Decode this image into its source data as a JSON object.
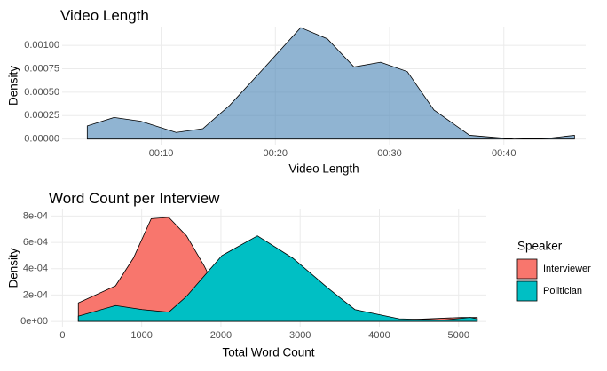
{
  "chart_data": [
    {
      "type": "density",
      "title": "Video Length",
      "x_label": "Video Length",
      "y_label": "Density",
      "xlim": [
        80,
        2830
      ],
      "ylim": [
        -6e-05,
        0.0012
      ],
      "xticks": [
        {
          "value": 600,
          "label": "00:10"
        },
        {
          "value": 1200,
          "label": "00:20"
        },
        {
          "value": 1800,
          "label": "00:30"
        },
        {
          "value": 2400,
          "label": "00:40"
        }
      ],
      "yticks": [
        {
          "value": 0,
          "label": "0.00000"
        },
        {
          "value": 0.00025,
          "label": "0.00025"
        },
        {
          "value": 0.0005,
          "label": "0.00050"
        },
        {
          "value": 0.00075,
          "label": "0.00075"
        },
        {
          "value": 0.001,
          "label": "0.00100"
        }
      ],
      "grid": true,
      "series": [
        {
          "name": "Video Length",
          "color": "#4682b4",
          "opacity": 0.6,
          "x": [
            212,
            353,
            493,
            679,
            819,
            960,
            1146,
            1333,
            1473,
            1613,
            1753,
            1893,
            2033,
            2220,
            2454,
            2640,
            2771
          ],
          "values": [
            0.00014,
            0.00023,
            0.00019,
            7e-05,
            0.00011,
            0.00036,
            0.00077,
            0.00119,
            0.00107,
            0.00077,
            0.00082,
            0.00072,
            0.00031,
            4e-05,
            0.0,
            1e-05,
            4e-05
          ]
        }
      ]
    },
    {
      "type": "density",
      "title": "Word Count per Interview",
      "x_label": "Total Word Count",
      "y_label": "Density",
      "legend_title": "Speaker",
      "legend": "right",
      "xlim": [
        -150,
        5350
      ],
      "ylim": [
        -4e-05,
        0.00085
      ],
      "xticks": [
        0,
        1000,
        2000,
        3000,
        4000,
        5000
      ],
      "yticks": [
        {
          "value": 0,
          "label": "0e+00"
        },
        {
          "value": 0.0002,
          "label": "2e-04"
        },
        {
          "value": 0.0004,
          "label": "4e-04"
        },
        {
          "value": 0.0006,
          "label": "6e-04"
        },
        {
          "value": 0.0008,
          "label": "8e-04"
        }
      ],
      "grid": true,
      "series": [
        {
          "name": "Interviewer",
          "color": "#f8766d",
          "opacity": 1,
          "x": [
            200,
            670,
            895,
            1120,
            1342,
            1566,
            1790,
            2013,
            2349,
            2796,
            3691,
            4250,
            5034,
            5235
          ],
          "values": [
            0.00014,
            0.00027,
            0.00048,
            0.00078,
            0.00079,
            0.00065,
            0.00042,
            0.00015,
            5e-05,
            1e-05,
            1e-05,
            1e-05,
            3e-05,
            3e-05
          ]
        },
        {
          "name": "Politician",
          "color": "#00bfc4",
          "opacity": 1,
          "x": [
            200,
            670,
            1007,
            1342,
            1566,
            2013,
            2461,
            2908,
            3356,
            3691,
            4250,
            4810,
            5145,
            5235
          ],
          "values": [
            4e-05,
            0.00012,
            9e-05,
            7e-05,
            0.00019,
            0.0005,
            0.00065,
            0.00048,
            0.00025,
            9e-05,
            2e-05,
            1e-05,
            3e-05,
            2e-05
          ]
        }
      ]
    }
  ]
}
